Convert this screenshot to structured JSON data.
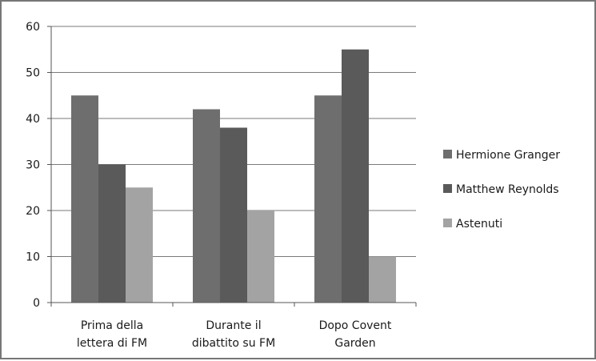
{
  "chart_data": {
    "type": "bar",
    "categories": [
      [
        "Prima della",
        "lettera di FM"
      ],
      [
        "Durante il",
        "dibattito su FM"
      ],
      [
        "Dopo Covent",
        "Garden"
      ]
    ],
    "series": [
      {
        "name": "Hermione Granger",
        "values": [
          45,
          42,
          45
        ],
        "color": "#6e6e6e"
      },
      {
        "name": "Matthew Reynolds",
        "values": [
          30,
          38,
          55
        ],
        "color": "#5a5a5a"
      },
      {
        "name": "Astenuti",
        "values": [
          25,
          20,
          10
        ],
        "color": "#a3a3a3"
      }
    ],
    "yticks": [
      0,
      10,
      20,
      30,
      40,
      50,
      60
    ],
    "ylim": [
      0,
      60
    ],
    "grid": true,
    "gridline_color": "#7a7a7a",
    "legend_position": "right",
    "title": "",
    "xlabel": "",
    "ylabel": ""
  }
}
